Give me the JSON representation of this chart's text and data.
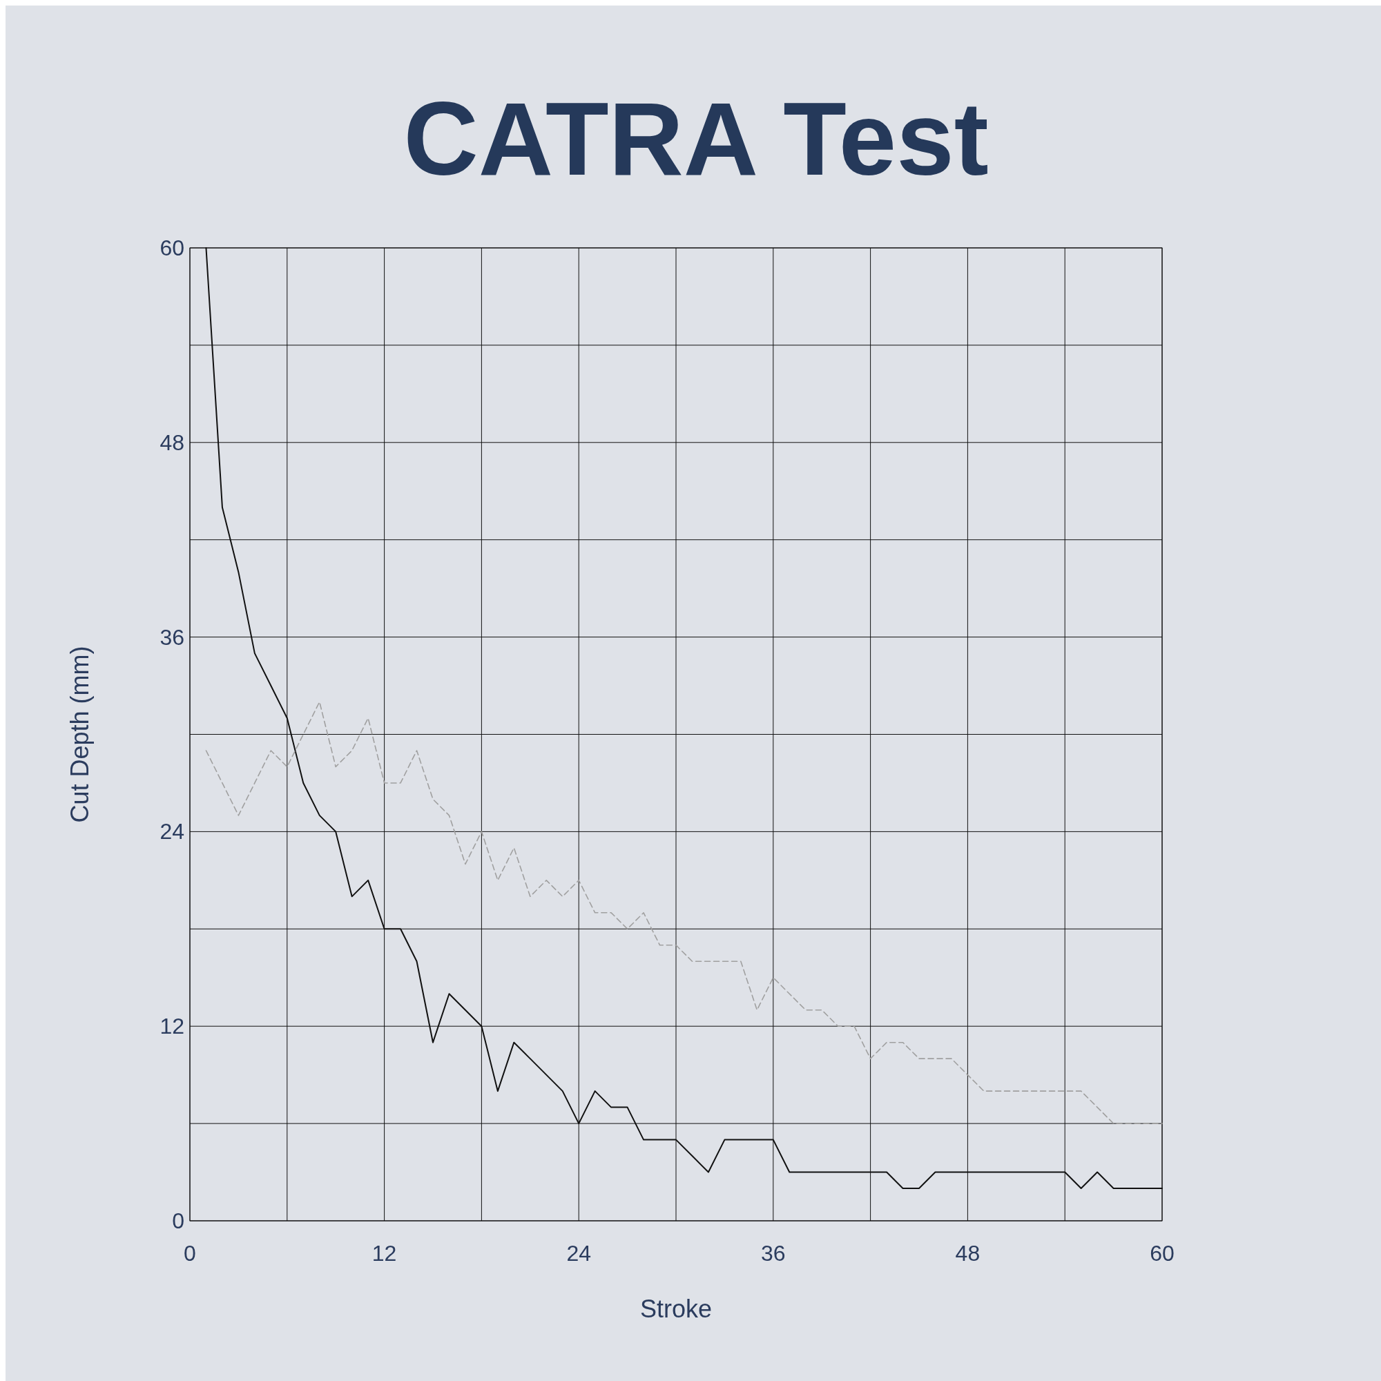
{
  "chart_data": {
    "type": "line",
    "title": "CATRA Test",
    "xlabel": "Stroke",
    "ylabel": "Cut Depth (mm)",
    "x": [
      1,
      2,
      3,
      4,
      5,
      6,
      7,
      8,
      9,
      10,
      11,
      12,
      13,
      14,
      15,
      16,
      17,
      18,
      19,
      20,
      21,
      22,
      23,
      24,
      25,
      26,
      27,
      28,
      29,
      30,
      31,
      32,
      33,
      34,
      35,
      36,
      37,
      38,
      39,
      40,
      41,
      42,
      43,
      44,
      45,
      46,
      47,
      48,
      49,
      50,
      51,
      52,
      53,
      54,
      55,
      56,
      57,
      58,
      59,
      60
    ],
    "series": [
      {
        "color": "#111111",
        "line_style": "solid",
        "values": [
          60,
          44,
          40,
          35,
          33,
          31,
          27,
          25,
          24,
          20,
          21,
          18,
          18,
          16,
          11,
          14,
          13,
          12,
          8,
          11,
          10,
          9,
          8,
          6,
          8,
          7,
          7,
          5,
          5,
          5,
          4,
          3,
          5,
          5,
          5,
          5,
          3,
          3,
          3,
          3,
          3,
          3,
          3,
          2,
          2,
          3,
          3,
          3,
          3,
          3,
          3,
          3,
          3,
          3,
          2,
          3,
          2,
          2,
          2,
          2
        ]
      },
      {
        "color": "#a0a0a0",
        "line_style": "dashed",
        "values": [
          29,
          27,
          25,
          27,
          29,
          28,
          30,
          32,
          28,
          29,
          31,
          27,
          27,
          29,
          26,
          25,
          22,
          24,
          21,
          23,
          20,
          21,
          20,
          21,
          19,
          19,
          18,
          19,
          17,
          17,
          16,
          16,
          16,
          16,
          13,
          15,
          14,
          13,
          13,
          12,
          12,
          10,
          11,
          11,
          10,
          10,
          10,
          9,
          8,
          8,
          8,
          8,
          8,
          8,
          8,
          7,
          6,
          6,
          6,
          6
        ]
      }
    ],
    "xlim": [
      0,
      60
    ],
    "ylim": [
      0,
      60
    ],
    "xticks": [
      0,
      12,
      24,
      36,
      48,
      60
    ],
    "yticks": [
      0,
      12,
      24,
      36,
      48,
      60
    ],
    "grid": true
  }
}
